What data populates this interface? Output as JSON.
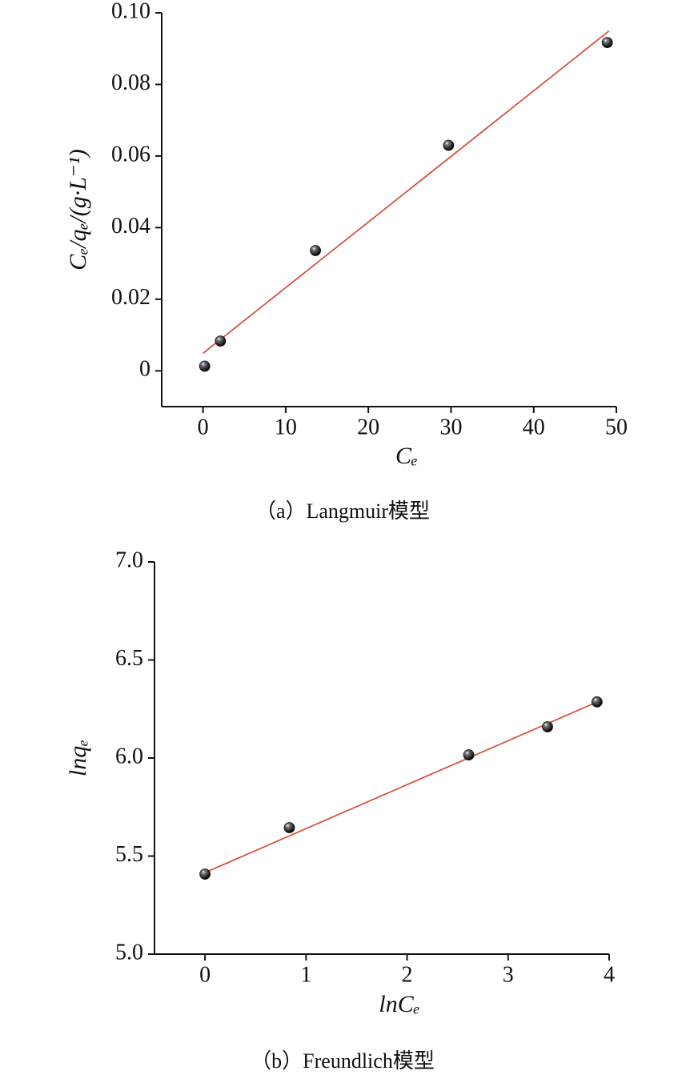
{
  "chart_data": [
    {
      "type": "scatter",
      "caption": "（a）Langmuir模型",
      "xlabel": "Cₑ",
      "ylabel": "Cₑ/qₑ/(g·L⁻¹)",
      "xlim": [
        -5,
        50
      ],
      "ylim": [
        -0.01,
        0.1
      ],
      "xticks": [
        0,
        10,
        20,
        30,
        40,
        50
      ],
      "yticks": [
        0,
        0.02,
        0.04,
        0.06,
        0.08,
        {
          "value": 0.1,
          "label": "0.10"
        }
      ],
      "series": [
        {
          "color": "#111111",
          "x": [
            0.2,
            2.1,
            13.6,
            29.7,
            48.9
          ],
          "values": [
            0.0013,
            0.0083,
            0.0336,
            0.063,
            0.0917
          ]
        }
      ],
      "fit": {
        "color": "#d9412e",
        "x": [
          0,
          49.1
        ],
        "values": [
          0.0049,
          0.0949
        ]
      }
    },
    {
      "type": "scatter",
      "caption": "（b）Freundlich模型",
      "xlabel": "lnCₑ",
      "ylabel": "lnqₑ",
      "xlim": [
        -0.5,
        4
      ],
      "ylim": [
        5,
        7
      ],
      "xticks": [
        0,
        1,
        2,
        3,
        4
      ],
      "yticks": [
        {
          "value": 5,
          "label": "5.0"
        },
        {
          "value": 5.5,
          "label": "5.5"
        },
        {
          "value": 6,
          "label": "6.0"
        },
        {
          "value": 6.5,
          "label": "6.5"
        },
        {
          "value": 7,
          "label": "7.0"
        }
      ],
      "series": [
        {
          "color": "#111111",
          "x": [
            0,
            0.835,
            2.61,
            3.39,
            3.88
          ],
          "values": [
            5.408,
            5.645,
            6.016,
            6.159,
            6.286
          ]
        }
      ],
      "fit": {
        "color": "#d9412e",
        "x": [
          0,
          3.9
        ],
        "values": [
          5.416,
          6.29
        ]
      }
    }
  ]
}
